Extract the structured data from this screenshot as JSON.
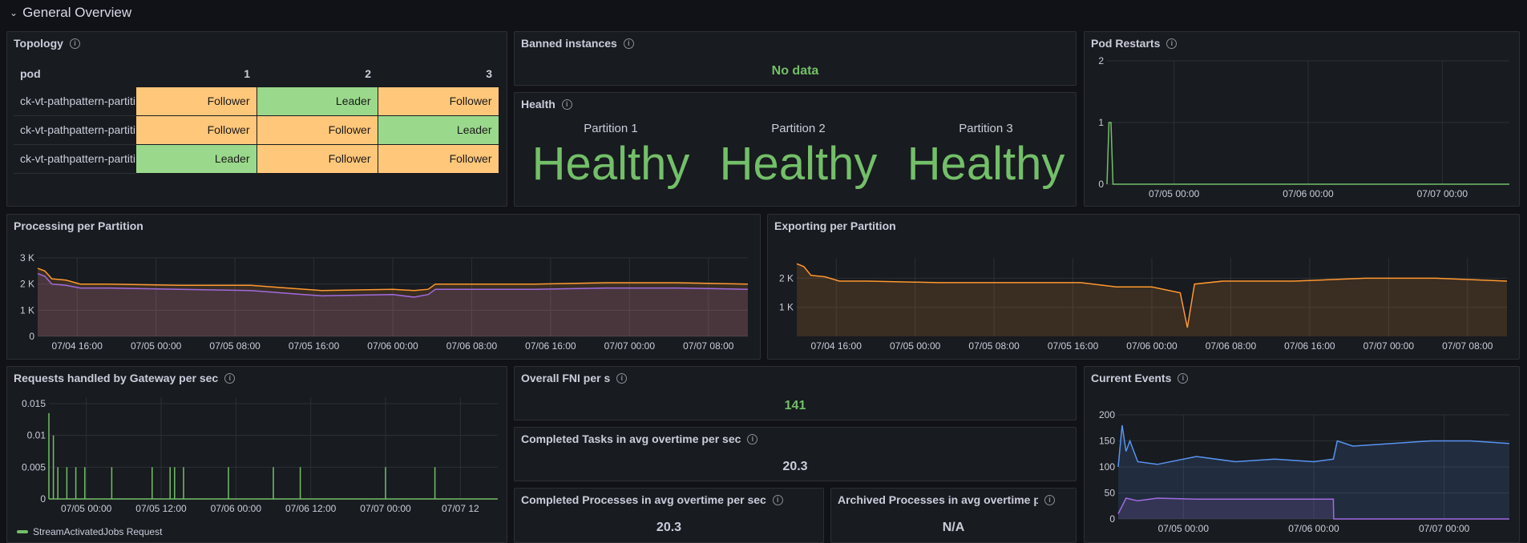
{
  "row": {
    "title": "General Overview"
  },
  "topology": {
    "title": "Topology",
    "columns": [
      "pod",
      "1",
      "2",
      "3"
    ],
    "rows": [
      {
        "pod": "ck-vt-pathpattern-partition",
        "cells": [
          "Follower",
          "Leader",
          "Follower"
        ]
      },
      {
        "pod": "ck-vt-pathpattern-partition",
        "cells": [
          "Follower",
          "Follower",
          "Leader"
        ]
      },
      {
        "pod": "ck-vt-pathpattern-partition",
        "cells": [
          "Leader",
          "Follower",
          "Follower"
        ]
      }
    ]
  },
  "banned": {
    "title": "Banned instances",
    "value": "No data"
  },
  "health": {
    "title": "Health",
    "partitions": [
      {
        "label": "Partition 1",
        "value": "Healthy"
      },
      {
        "label": "Partition 2",
        "value": "Healthy"
      },
      {
        "label": "Partition 3",
        "value": "Healthy"
      }
    ]
  },
  "pod_restarts": {
    "title": "Pod Restarts"
  },
  "processing": {
    "title": "Processing per Partition"
  },
  "exporting": {
    "title": "Exporting per Partition"
  },
  "gateway": {
    "title": "Requests handled by Gateway per sec",
    "legend": "StreamActivatedJobs Request"
  },
  "fni": {
    "title": "Overall FNI per s",
    "value": "141"
  },
  "completed_tasks": {
    "title": "Completed Tasks in avg overtime per sec",
    "value": "20.3"
  },
  "completed_processes": {
    "title": "Completed Processes in avg overtime per sec",
    "value": "20.3"
  },
  "archived_processes": {
    "title": "Archived Processes in avg overtime per sec",
    "value": "N/A"
  },
  "current_events": {
    "title": "Current Events"
  },
  "colors": {
    "green": "#73bf69",
    "orange": "#ff9830",
    "purple": "#a16be0",
    "blue": "#5794f2",
    "grid": "#2c3036"
  },
  "chart_data": [
    {
      "id": "pod_restarts",
      "type": "line",
      "title": "Pod Restarts",
      "yticks": [
        "0",
        "1",
        "2"
      ],
      "ylim": [
        0,
        2
      ],
      "xticks": [
        "07/05 00:00",
        "07/06 00:00",
        "07/07 00:00"
      ],
      "series": [
        {
          "color": "#73bf69",
          "x": [
            0,
            0.005,
            0.01,
            0.015,
            1
          ],
          "y": [
            0,
            1,
            1,
            0,
            0
          ]
        }
      ]
    },
    {
      "id": "processing",
      "type": "area",
      "title": "Processing per Partition",
      "yticks": [
        "0",
        "1 K",
        "2 K",
        "3 K"
      ],
      "ylim": [
        0,
        3000
      ],
      "xticks": [
        "07/04 16:00",
        "07/05 00:00",
        "07/05 08:00",
        "07/05 16:00",
        "07/06 00:00",
        "07/06 08:00",
        "07/06 16:00",
        "07/07 00:00",
        "07/07 08:00"
      ],
      "series": [
        {
          "color": "#ff9830",
          "x": [
            0,
            0.01,
            0.02,
            0.04,
            0.06,
            0.1,
            0.2,
            0.3,
            0.4,
            0.5,
            0.53,
            0.55,
            0.56,
            0.6,
            0.7,
            0.8,
            0.9,
            1
          ],
          "y": [
            2600,
            2500,
            2200,
            2150,
            2000,
            2000,
            1950,
            1950,
            1750,
            1800,
            1750,
            1800,
            2000,
            2000,
            2000,
            2050,
            2050,
            2000
          ]
        },
        {
          "color": "#a16be0",
          "x": [
            0,
            0.01,
            0.02,
            0.04,
            0.06,
            0.1,
            0.2,
            0.3,
            0.4,
            0.5,
            0.53,
            0.55,
            0.56,
            0.6,
            0.7,
            0.8,
            0.9,
            1
          ],
          "y": [
            2400,
            2300,
            2000,
            1950,
            1850,
            1850,
            1800,
            1750,
            1550,
            1600,
            1500,
            1600,
            1800,
            1800,
            1800,
            1850,
            1850,
            1800
          ]
        }
      ]
    },
    {
      "id": "exporting",
      "type": "area",
      "title": "Exporting per Partition",
      "yticks": [
        "1 K",
        "2 K"
      ],
      "ylim": [
        0,
        2700
      ],
      "xticks": [
        "07/04 16:00",
        "07/05 00:00",
        "07/05 08:00",
        "07/05 16:00",
        "07/06 00:00",
        "07/06 08:00",
        "07/06 16:00",
        "07/07 00:00",
        "07/07 08:00"
      ],
      "series": [
        {
          "color": "#ff9830",
          "x": [
            0,
            0.01,
            0.02,
            0.04,
            0.06,
            0.1,
            0.2,
            0.3,
            0.4,
            0.45,
            0.5,
            0.54,
            0.55,
            0.56,
            0.6,
            0.7,
            0.8,
            0.9,
            1
          ],
          "y": [
            2500,
            2400,
            2100,
            2050,
            1900,
            1900,
            1850,
            1850,
            1850,
            1700,
            1700,
            1500,
            300,
            1800,
            1900,
            1900,
            2000,
            2000,
            1900
          ]
        }
      ]
    },
    {
      "id": "gateway",
      "type": "line",
      "title": "Requests handled by Gateway per sec",
      "yticks": [
        "0",
        "0.005",
        "0.01",
        "0.015"
      ],
      "ylim": [
        0,
        0.016
      ],
      "xticks": [
        "07/05 00:00",
        "07/05 12:00",
        "07/06 00:00",
        "07/06 12:00",
        "07/07 00:00",
        "07/07 12"
      ],
      "series": [
        {
          "name": "StreamActivatedJobs Request",
          "color": "#73bf69",
          "spikes": [
            0.0,
            0.01,
            0.02,
            0.04,
            0.06,
            0.08,
            0.14,
            0.23,
            0.27,
            0.28,
            0.3,
            0.4,
            0.5,
            0.56,
            0.75,
            0.86
          ],
          "heights": [
            0.0135,
            0.01,
            0.005,
            0.005,
            0.005,
            0.005,
            0.005,
            0.005,
            0.005,
            0.005,
            0.005,
            0.005,
            0.005,
            0.005,
            0.005,
            0.005
          ]
        }
      ]
    },
    {
      "id": "current_events",
      "type": "area",
      "title": "Current Events",
      "yticks": [
        "0",
        "50",
        "100",
        "150",
        "200"
      ],
      "ylim": [
        0,
        200
      ],
      "xticks": [
        "07/05 00:00",
        "07/06 00:00",
        "07/07 00:00"
      ],
      "series": [
        {
          "color": "#5794f2",
          "x": [
            0,
            0.01,
            0.02,
            0.03,
            0.05,
            0.1,
            0.2,
            0.3,
            0.4,
            0.5,
            0.55,
            0.56,
            0.6,
            0.7,
            0.8,
            0.9,
            1
          ],
          "y": [
            100,
            180,
            130,
            150,
            110,
            105,
            120,
            110,
            115,
            110,
            115,
            150,
            140,
            145,
            150,
            150,
            145
          ]
        },
        {
          "color": "#a16be0",
          "x": [
            0,
            0.02,
            0.05,
            0.1,
            0.2,
            0.3,
            0.4,
            0.5,
            0.55,
            0.551,
            1
          ],
          "y": [
            10,
            40,
            35,
            40,
            38,
            38,
            38,
            38,
            38,
            0,
            0
          ]
        }
      ]
    }
  ]
}
